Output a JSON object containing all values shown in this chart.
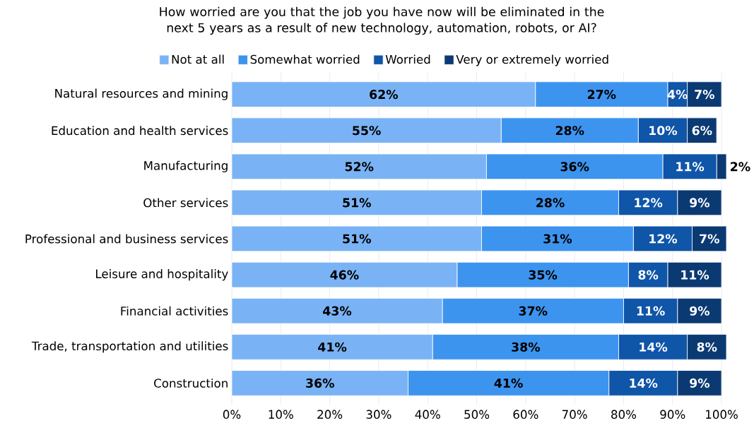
{
  "chart_data": {
    "type": "bar",
    "orientation": "horizontal",
    "stacked": true,
    "title": "How worried are you that the job you have now will be eliminated in the next 5 years as a result of new technology, automation, robots, or AI?",
    "categories": [
      "Natural resources and mining",
      "Education and health services",
      "Manufacturing",
      "Other services",
      "Professional and business services",
      "Leisure and hospitality",
      "Financial activities",
      "Trade, transportation and utilities",
      "Construction"
    ],
    "series": [
      {
        "name": "Not at all",
        "color": "#7ab3f5",
        "values": [
          62,
          55,
          52,
          51,
          51,
          46,
          43,
          41,
          36
        ],
        "value_labels": [
          "62%",
          "55%",
          "52%",
          "51%",
          "51%",
          "46%",
          "43%",
          "41%",
          "36%"
        ]
      },
      {
        "name": "Somewhat worried",
        "color": "#3d94ef",
        "values": [
          27,
          28,
          36,
          28,
          31,
          35,
          37,
          38,
          41
        ],
        "value_labels": [
          "27%",
          "28%",
          "36%",
          "28%",
          "31%",
          "35%",
          "37%",
          "38%",
          "41%"
        ]
      },
      {
        "name": "Worried",
        "color": "#0f55a8",
        "values": [
          4,
          10,
          11,
          12,
          12,
          8,
          11,
          14,
          14
        ],
        "value_labels": [
          "4%",
          "10%",
          "11%",
          "12%",
          "12%",
          "8%",
          "11%",
          "14%",
          "14%"
        ]
      },
      {
        "name": "Very or extremely worried",
        "color": "#0b3a73",
        "values": [
          7,
          6,
          2,
          9,
          7,
          11,
          9,
          8,
          9
        ],
        "value_labels": [
          "7%",
          "6%",
          "2%",
          "9%",
          "7%",
          "11%",
          "9%",
          "8%",
          "9%"
        ]
      }
    ],
    "xlim": [
      0,
      101
    ],
    "xticks": [
      {
        "value": 0,
        "label": "0%"
      },
      {
        "value": 10,
        "label": "10%"
      },
      {
        "value": 20,
        "label": "20%"
      },
      {
        "value": 30,
        "label": "30%"
      },
      {
        "value": 40,
        "label": "40%"
      },
      {
        "value": 50,
        "label": "50%"
      },
      {
        "value": 60,
        "label": "60%"
      },
      {
        "value": 70,
        "label": "70%"
      },
      {
        "value": 80,
        "label": "80%"
      },
      {
        "value": 90,
        "label": "90%"
      },
      {
        "value": 100,
        "label": "100%"
      }
    ],
    "grid": "x",
    "legend": "top"
  }
}
